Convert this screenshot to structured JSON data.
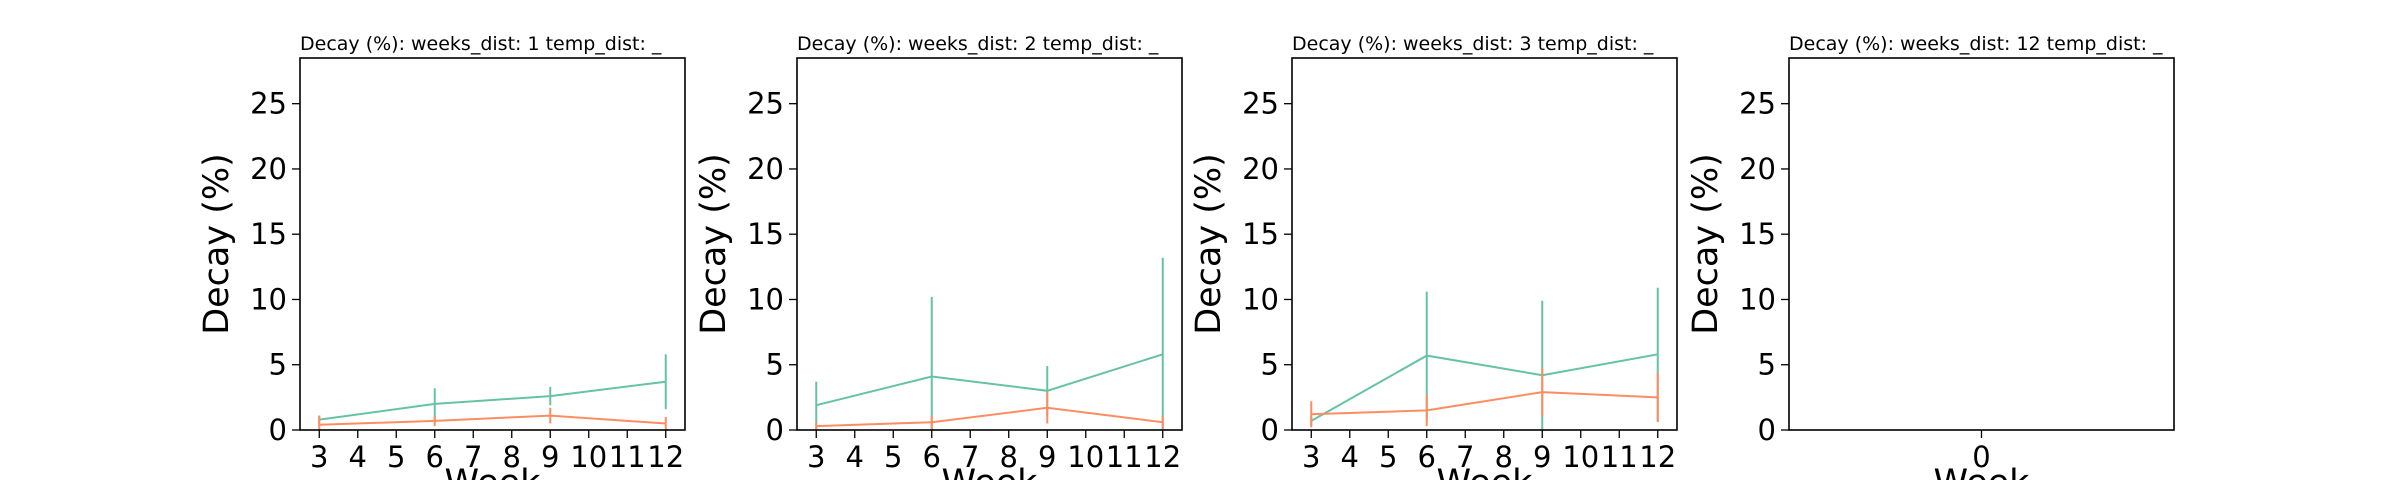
{
  "colors": {
    "series_a": "#66c2a5",
    "series_b": "#fc8d62"
  },
  "chart_data": [
    {
      "type": "line",
      "title": "Decay (%):  weeks_dist: 1  temp_dist: _",
      "xlabel": "Week",
      "ylabel": "Decay (%)",
      "xlim": [
        2.5,
        12.5
      ],
      "ylim": [
        0,
        28.5
      ],
      "xticks": [
        3,
        4,
        5,
        6,
        7,
        8,
        9,
        10,
        11,
        12
      ],
      "yticks": [
        0,
        5,
        10,
        15,
        20,
        25
      ],
      "grid": false,
      "series": [
        {
          "color": "#66c2a5",
          "x": [
            3,
            6,
            9,
            12
          ],
          "y": [
            0.8,
            2.0,
            2.6,
            3.7
          ],
          "err": [
            0.3,
            1.2,
            0.7,
            2.1
          ]
        },
        {
          "color": "#fc8d62",
          "x": [
            3,
            6,
            9,
            12
          ],
          "y": [
            0.4,
            0.7,
            1.1,
            0.5
          ],
          "err": [
            0.7,
            0.4,
            0.6,
            0.5
          ]
        }
      ]
    },
    {
      "type": "line",
      "title": "Decay (%):  weeks_dist: 2  temp_dist: _",
      "xlabel": "Week",
      "ylabel": "Decay (%)",
      "xlim": [
        2.5,
        12.5
      ],
      "ylim": [
        0,
        28.5
      ],
      "xticks": [
        3,
        4,
        5,
        6,
        7,
        8,
        9,
        10,
        11,
        12
      ],
      "yticks": [
        0,
        5,
        10,
        15,
        20,
        25
      ],
      "grid": false,
      "series": [
        {
          "color": "#66c2a5",
          "x": [
            3,
            6,
            9,
            12
          ],
          "y": [
            1.9,
            4.1,
            3.0,
            5.8
          ],
          "err": [
            1.8,
            6.1,
            1.9,
            7.4
          ]
        },
        {
          "color": "#fc8d62",
          "x": [
            3,
            6,
            9,
            12
          ],
          "y": [
            0.3,
            0.6,
            1.7,
            0.6
          ],
          "err": [
            0.3,
            0.5,
            1.2,
            0.5
          ]
        }
      ]
    },
    {
      "type": "line",
      "title": "Decay (%):  weeks_dist: 3  temp_dist: _",
      "xlabel": "Week",
      "ylabel": "Decay (%)",
      "xlim": [
        2.5,
        12.5
      ],
      "ylim": [
        0,
        28.5
      ],
      "xticks": [
        3,
        4,
        5,
        6,
        7,
        8,
        9,
        10,
        11,
        12
      ],
      "yticks": [
        0,
        5,
        10,
        15,
        20,
        25
      ],
      "grid": false,
      "series": [
        {
          "color": "#66c2a5",
          "x": [
            3,
            6,
            9,
            12
          ],
          "y": [
            0.7,
            5.7,
            4.2,
            5.8
          ],
          "err": [
            0.4,
            4.9,
            5.7,
            5.1
          ]
        },
        {
          "color": "#fc8d62",
          "x": [
            3,
            6,
            9,
            12
          ],
          "y": [
            1.2,
            1.5,
            2.9,
            2.5
          ],
          "err": [
            1.0,
            1.2,
            1.8,
            1.9
          ]
        }
      ]
    },
    {
      "type": "line",
      "title": "Decay (%):  weeks_dist: 12  temp_dist: _",
      "xlabel": "Week",
      "ylabel": "Decay (%)",
      "xlim": [
        -1,
        1
      ],
      "ylim": [
        0,
        28.5
      ],
      "xticks": [
        0
      ],
      "yticks": [
        0,
        5,
        10,
        15,
        20,
        25
      ],
      "grid": false,
      "series": []
    }
  ]
}
